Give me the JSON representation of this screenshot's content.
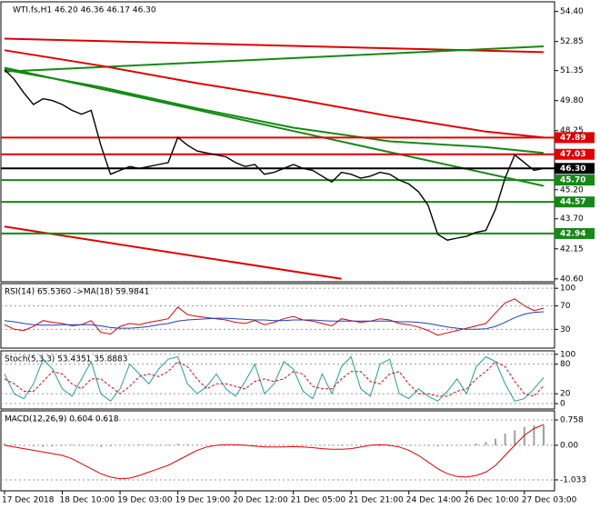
{
  "chart_data": [
    {
      "type": "line",
      "title": "WTI.fs,H1  46.20 46.36 46.17 46.30",
      "ylim": [
        40.45,
        54.9
      ],
      "yticks": [
        {
          "value": 54.4,
          "label": "54.40"
        },
        {
          "value": 52.85,
          "label": "52.85"
        },
        {
          "value": 51.35,
          "label": "51.35"
        },
        {
          "value": 49.8,
          "label": "49.80"
        },
        {
          "value": 48.25,
          "label": "48.25"
        },
        {
          "value": 45.2,
          "label": "45.20"
        },
        {
          "value": 43.7,
          "label": "43.70"
        },
        {
          "value": 42.15,
          "label": "42.15"
        },
        {
          "value": 40.6,
          "label": "40.60"
        }
      ],
      "series": [
        {
          "color": "#000000",
          "values": [
            51.4,
            50.9,
            50.2,
            49.6,
            49.9,
            49.8,
            49.6,
            49.3,
            49.1,
            49.3,
            47.5,
            46.0,
            46.2,
            46.4,
            46.3,
            46.4,
            46.5,
            46.6,
            47.9,
            47.5,
            47.2,
            47.1,
            47.0,
            46.9,
            46.6,
            46.4,
            46.5,
            46.0,
            46.1,
            46.3,
            46.5,
            46.3,
            46.2,
            45.9,
            45.6,
            46.1,
            46.0,
            45.8,
            45.9,
            46.1,
            46.0,
            45.7,
            45.5,
            45.1,
            44.4,
            42.9,
            42.6,
            42.7,
            42.8,
            43.0,
            43.1,
            44.2,
            45.8,
            47.0,
            46.6,
            46.2,
            46.3
          ]
        }
      ],
      "trendlines": [
        {
          "color": "#e00000",
          "x": [
            0,
            56
          ],
          "values": [
            53.0,
            52.3
          ]
        },
        {
          "color": "#138a13",
          "x": [
            0,
            56
          ],
          "values": [
            51.3,
            52.6
          ]
        },
        {
          "color": "#e00000",
          "x": [
            0,
            35
          ],
          "values": [
            43.3,
            40.6
          ]
        },
        {
          "color": "#138a13",
          "x": [
            0,
            56
          ],
          "values": [
            51.5,
            45.4
          ]
        },
        {
          "color": "#e00000",
          "x": [
            0,
            10,
            20,
            30,
            40,
            50,
            56
          ],
          "values": [
            52.4,
            51.6,
            50.7,
            49.9,
            49.0,
            48.2,
            47.9
          ]
        },
        {
          "color": "#138a13",
          "x": [
            0,
            10,
            20,
            30,
            40,
            50,
            56
          ],
          "values": [
            51.4,
            50.5,
            49.4,
            48.4,
            47.7,
            47.4,
            47.1
          ]
        }
      ],
      "levels": [
        {
          "value": 47.89,
          "label": "47.89",
          "color": "#e00000"
        },
        {
          "value": 47.03,
          "label": "47.03",
          "color": "#e00000"
        },
        {
          "value": 46.3,
          "label": "46.30",
          "color": "#000000"
        },
        {
          "value": 45.7,
          "label": "45.70",
          "color": "#138a13"
        },
        {
          "value": 44.57,
          "label": "44.57",
          "color": "#138a13"
        },
        {
          "value": 42.94,
          "label": "42.94",
          "color": "#138a13"
        }
      ]
    },
    {
      "type": "line",
      "title": "RSI(14) 65.5360 ->MA(18) 59.9841",
      "ylim": [
        -2,
        108
      ],
      "yticks": [
        100,
        70,
        30
      ],
      "series": [
        {
          "color": "#e00000",
          "values": [
            38,
            30,
            28,
            35,
            45,
            42,
            40,
            36,
            38,
            45,
            25,
            22,
            35,
            40,
            38,
            42,
            45,
            48,
            68,
            55,
            52,
            50,
            48,
            46,
            42,
            40,
            45,
            38,
            42,
            48,
            52,
            46,
            44,
            40,
            36,
            48,
            45,
            42,
            44,
            48,
            46,
            40,
            38,
            34,
            28,
            20,
            24,
            28,
            32,
            36,
            40,
            58,
            75,
            82,
            70,
            62,
            66
          ]
        },
        {
          "color": "#1f3fbf",
          "values": [
            45,
            43,
            40,
            38,
            37,
            37,
            38,
            38,
            38,
            38,
            36,
            33,
            32,
            32,
            33,
            35,
            38,
            40,
            44,
            46,
            47,
            48,
            49,
            49,
            48,
            47,
            46,
            46,
            45,
            45,
            46,
            46,
            46,
            45,
            44,
            44,
            44,
            44,
            44,
            44,
            44,
            43,
            43,
            42,
            40,
            37,
            34,
            32,
            30,
            30,
            31,
            35,
            42,
            50,
            56,
            59,
            60
          ]
        }
      ]
    },
    {
      "type": "line",
      "title": "Stoch(5,3,3) 53.4351 35.8883",
      "ylim": [
        -11,
        107
      ],
      "yticks": [
        100,
        80,
        20,
        0
      ],
      "series": [
        {
          "color": "#20a0a0",
          "values": [
            60,
            20,
            10,
            40,
            90,
            70,
            30,
            15,
            50,
            85,
            20,
            5,
            30,
            80,
            60,
            40,
            70,
            90,
            95,
            40,
            20,
            35,
            60,
            30,
            15,
            45,
            80,
            20,
            40,
            85,
            70,
            25,
            10,
            60,
            20,
            75,
            95,
            30,
            15,
            80,
            90,
            20,
            10,
            30,
            15,
            5,
            25,
            50,
            20,
            75,
            95,
            85,
            40,
            5,
            10,
            30,
            53
          ]
        },
        {
          "color": "#e00000",
          "dashed": true,
          "values": [
            50,
            40,
            25,
            25,
            45,
            65,
            60,
            40,
            30,
            50,
            50,
            35,
            20,
            35,
            55,
            60,
            55,
            65,
            85,
            75,
            50,
            30,
            40,
            40,
            35,
            30,
            45,
            50,
            45,
            50,
            65,
            60,
            35,
            30,
            30,
            50,
            65,
            65,
            45,
            40,
            60,
            65,
            40,
            20,
            20,
            15,
            15,
            25,
            30,
            50,
            65,
            85,
            75,
            45,
            20,
            15,
            36
          ]
        }
      ]
    },
    {
      "type": "bar",
      "title": "MACD(12,26,9) 0.604 0.618",
      "ylim": [
        -1.36,
        1.03
      ],
      "yticks": [
        0.758,
        {
          "value": 0,
          "label": "0.00"
        },
        -1.033
      ],
      "categories": [
        "17 Dec 2018",
        null,
        null,
        null,
        null,
        null,
        "18 Dec 10:00",
        null,
        null,
        null,
        null,
        null,
        "19 Dec 03:00",
        null,
        null,
        null,
        null,
        null,
        "19 Dec 19:00",
        null,
        null,
        null,
        null,
        null,
        "20 Dec 12:00",
        null,
        null,
        null,
        null,
        null,
        "21 Dec 05:00",
        null,
        null,
        null,
        null,
        null,
        "21 Dec 21:00",
        null,
        null,
        null,
        null,
        null,
        "24 Dec 14:00",
        null,
        null,
        null,
        null,
        null,
        "26 Dec 10:00",
        null,
        null,
        null,
        null,
        null,
        "27 Dec 03:00",
        null,
        null
      ],
      "series": [
        {
          "type": "bar",
          "color": "#a0a0a0",
          "values": [
            0.05,
            0.03,
            0,
            -0.03,
            -0.05,
            -0.03,
            0,
            0.02,
            0,
            -0.02,
            -0.05,
            -0.03,
            0,
            0.02,
            0.03,
            0.02,
            0,
            0.02,
            0.05,
            0.03,
            0.02,
            0.01,
            0,
            0,
            -0.01,
            -0.02,
            -0.01,
            0,
            0.01,
            0,
            -0.01,
            -0.02,
            -0.01,
            0,
            0.01,
            0.02,
            0.01,
            0,
            -0.01,
            -0.02,
            -0.03,
            -0.02,
            -0.01,
            0,
            -0.02,
            -0.03,
            -0.02,
            0,
            0.02,
            0.05,
            0.1,
            0.2,
            0.35,
            0.45,
            0.55,
            0.6,
            0.6
          ]
        },
        {
          "type": "line",
          "color": "#e00000",
          "values": [
            0,
            -0.05,
            -0.1,
            -0.15,
            -0.2,
            -0.25,
            -0.3,
            -0.4,
            -0.55,
            -0.7,
            -0.85,
            -0.95,
            -1.0,
            -0.98,
            -0.9,
            -0.8,
            -0.7,
            -0.6,
            -0.45,
            -0.3,
            -0.15,
            -0.05,
            0,
            0.02,
            0.02,
            0,
            -0.02,
            -0.05,
            -0.05,
            -0.05,
            -0.04,
            -0.05,
            -0.07,
            -0.1,
            -0.12,
            -0.12,
            -0.1,
            -0.05,
            0,
            0.02,
            0,
            -0.05,
            -0.15,
            -0.3,
            -0.5,
            -0.7,
            -0.85,
            -0.93,
            -0.95,
            -0.9,
            -0.8,
            -0.6,
            -0.3,
            0,
            0.3,
            0.5,
            0.62
          ]
        }
      ]
    }
  ]
}
